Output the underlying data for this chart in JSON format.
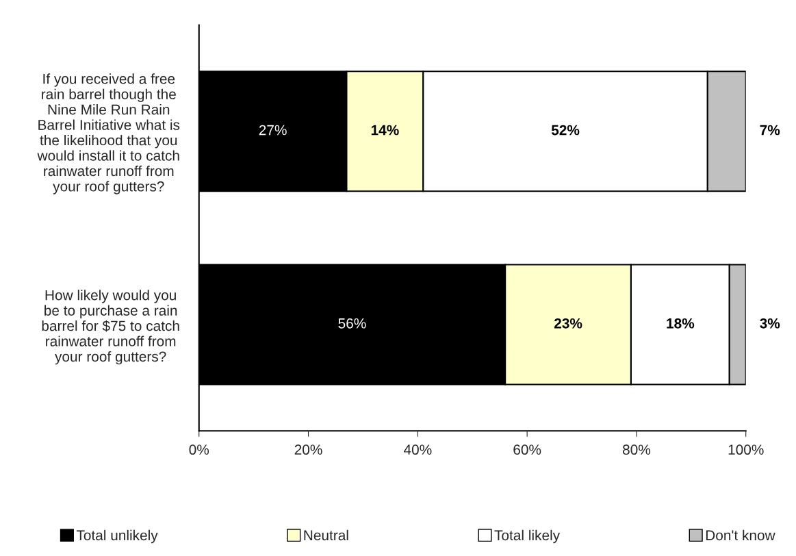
{
  "chart_data": {
    "type": "bar",
    "orientation": "horizontal",
    "stacked": true,
    "categories": [
      "If you received a free\nrain barrel though the\nNine Mile Run Rain\nBarrel Initiative what is\nthe likelihood that you\nwould install it to catch\nrainwater runoff from\nyour roof gutters?",
      "How likely would you\nbe to purchase a rain\nbarrel for $75 to catch\nrainwater runoff from\nyour roof gutters?"
    ],
    "series": [
      {
        "name": "Total unlikely",
        "color": "#000000",
        "values": [
          27,
          56
        ],
        "value_labels": [
          "27%",
          "56%"
        ]
      },
      {
        "name": "Neutral",
        "color": "#ffffcc",
        "values": [
          14,
          23
        ],
        "value_labels": [
          "14%",
          "23%"
        ]
      },
      {
        "name": "Total likely",
        "color": "#ffffff",
        "values": [
          52,
          18
        ],
        "value_labels": [
          "52%",
          "18%"
        ]
      },
      {
        "name": "Don't know",
        "color": "#c0c0c0",
        "values": [
          7,
          3
        ],
        "value_labels": [
          "7%",
          "3%"
        ]
      }
    ],
    "xlim": [
      0,
      100
    ],
    "xticks": [
      {
        "value": 0,
        "label": "0%"
      },
      {
        "value": 20,
        "label": "20%"
      },
      {
        "value": 40,
        "label": "40%"
      },
      {
        "value": 60,
        "label": "60%"
      },
      {
        "value": 80,
        "label": "80%"
      },
      {
        "value": 100,
        "label": "100%"
      }
    ],
    "grid": false,
    "legend": "bottom"
  }
}
